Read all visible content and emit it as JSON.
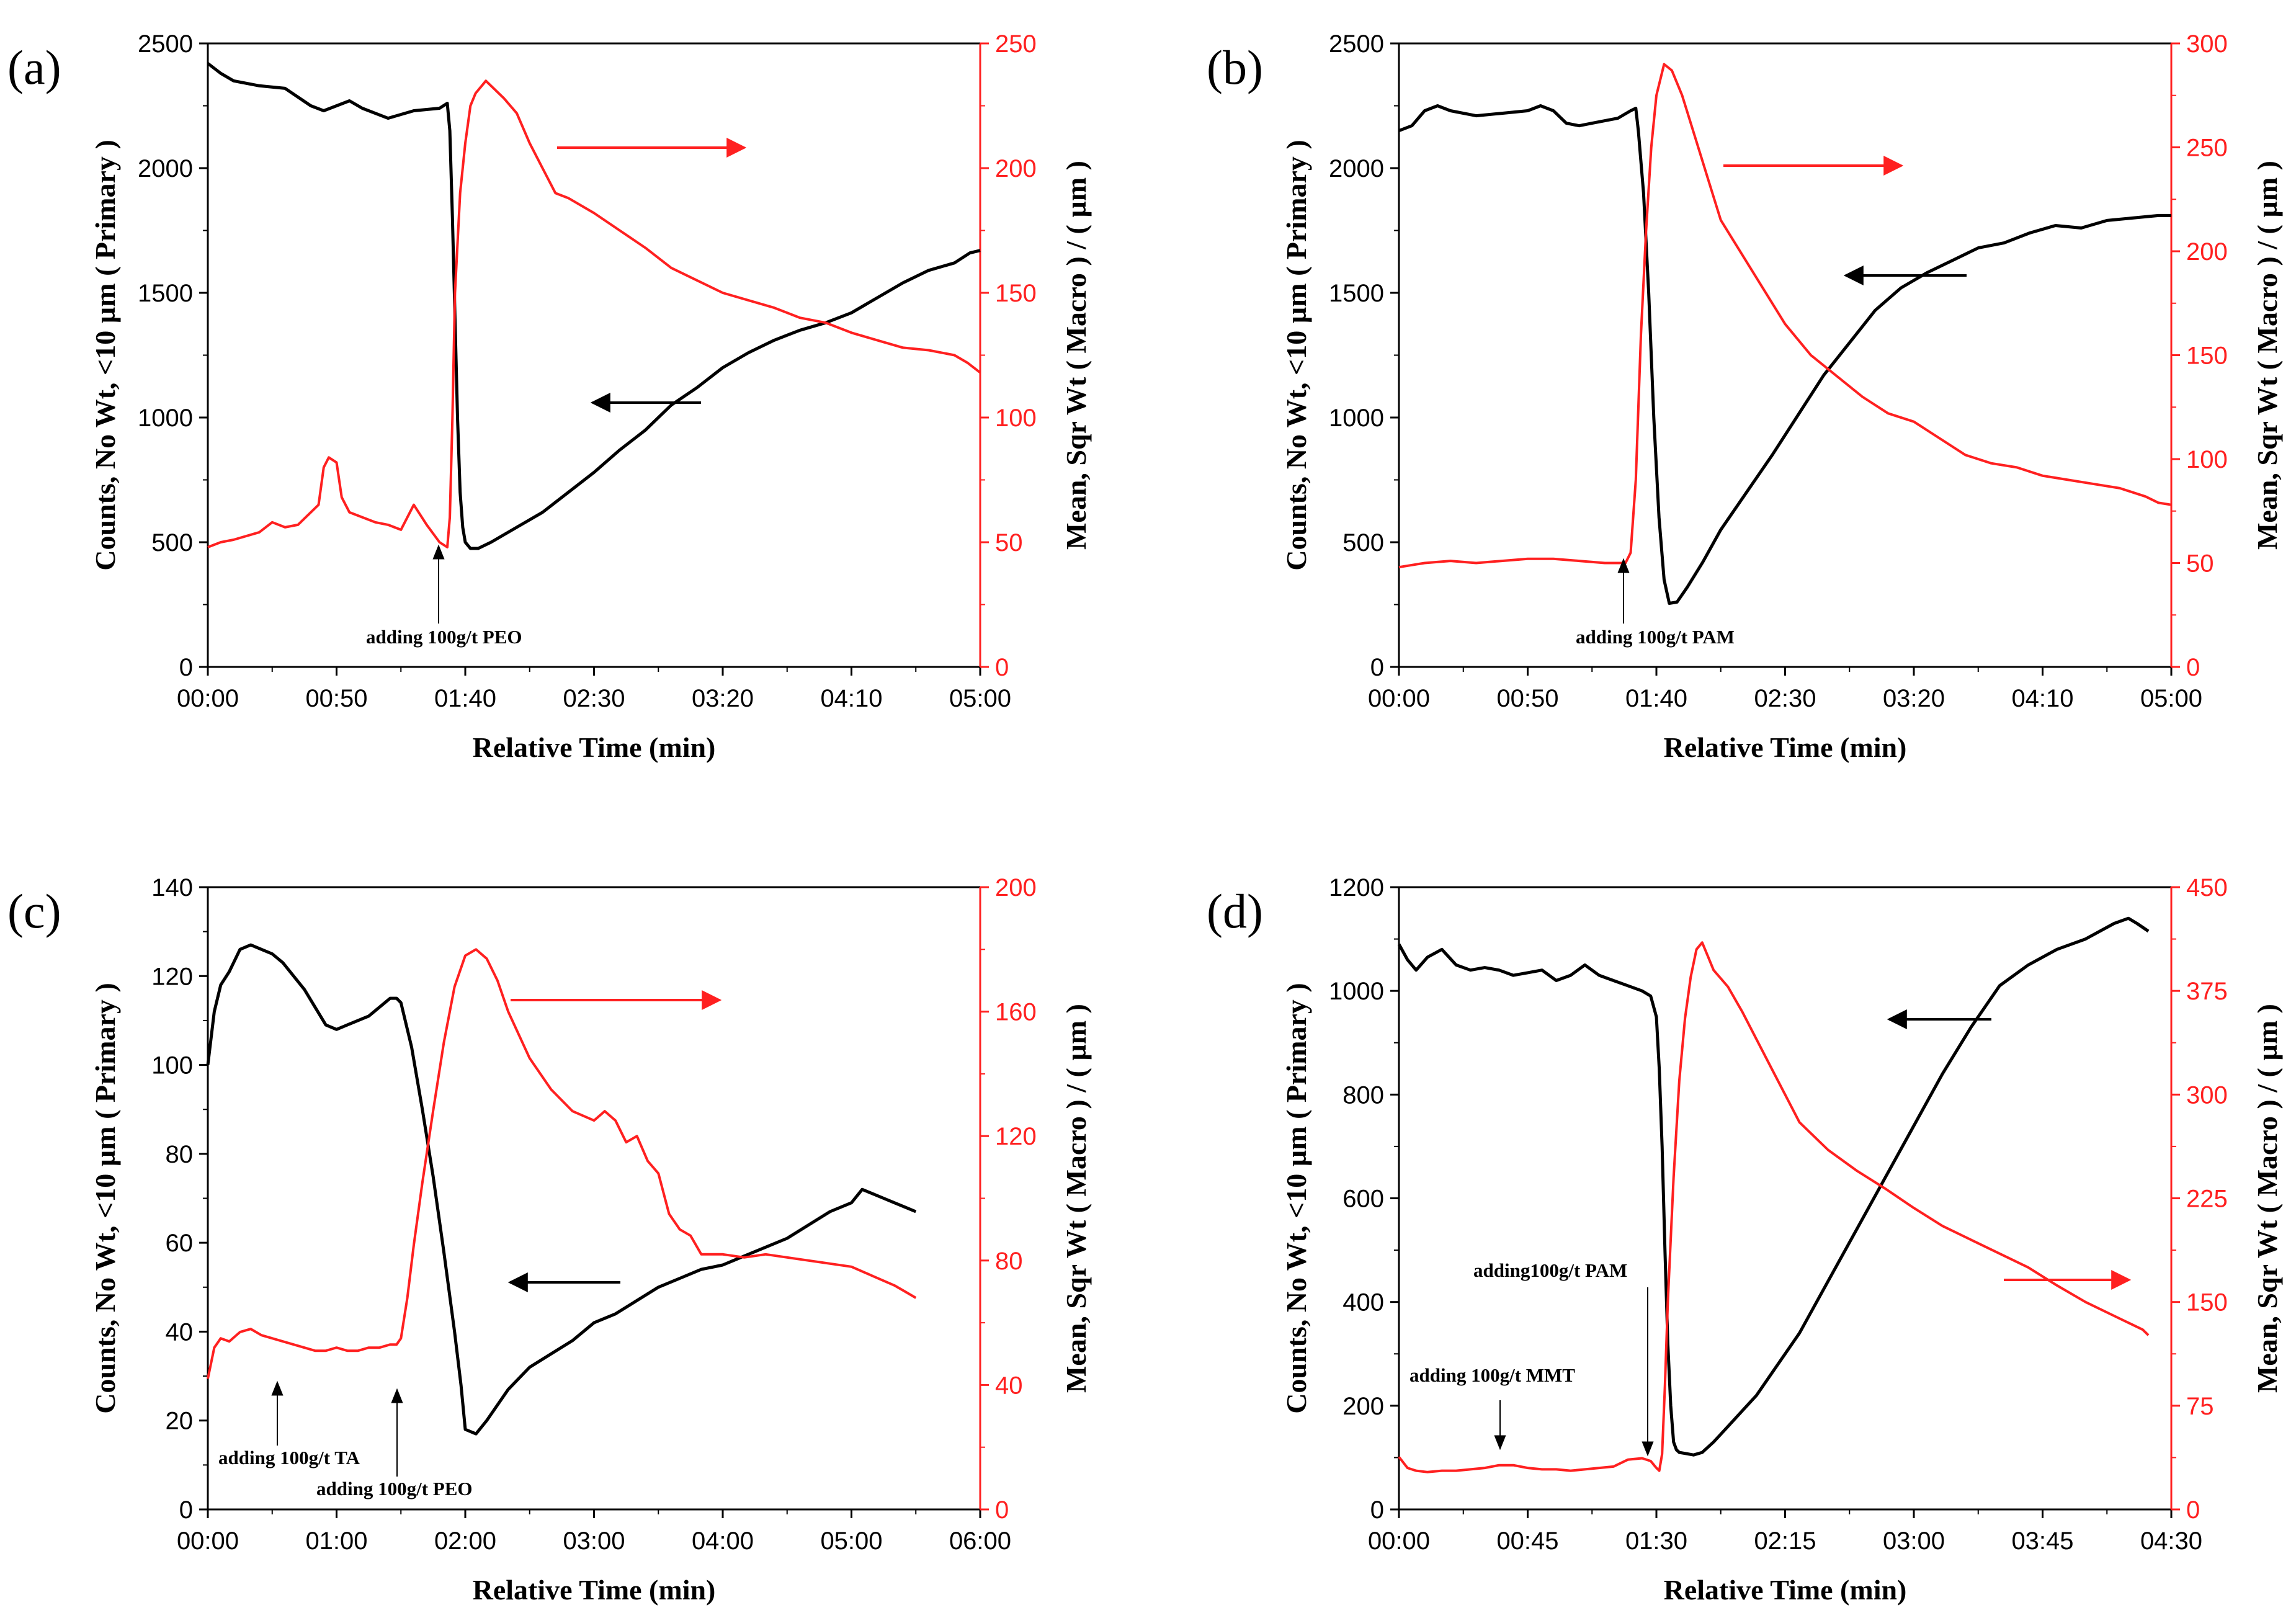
{
  "colors": {
    "left_series": "#000000",
    "right_series": "#ff2020",
    "axis": "#000000",
    "right_axis": "#ff2020"
  },
  "chart_data": [
    {
      "panel": "(a)",
      "type": "line",
      "xlabel": "Relative Time (min)",
      "ylabel_left": "Counts, No Wt, <10 µm ( Primary )",
      "ylabel_right": "Mean, Sqr Wt ( Macro ) / ( µm )",
      "xlim": [
        0,
        300
      ],
      "xticks": [
        0,
        50,
        100,
        150,
        200,
        250,
        300
      ],
      "xtick_labels": [
        "00:00",
        "00:50",
        "01:40",
        "02:30",
        "03:20",
        "04:10",
        "05:00"
      ],
      "ylim_left": [
        0,
        2500
      ],
      "yticks_left": [
        0,
        500,
        1000,
        1500,
        2000,
        2500
      ],
      "ylim_right": [
        0,
        250
      ],
      "yticks_right": [
        0,
        50,
        100,
        150,
        200,
        250
      ],
      "series": [
        {
          "name": "Counts, No Wt, <10 µm",
          "axis": "left",
          "color": "#000000",
          "x": [
            0,
            5,
            10,
            20,
            30,
            40,
            45,
            55,
            60,
            70,
            80,
            90,
            93,
            94,
            95,
            96,
            97,
            98,
            99,
            100,
            102,
            105,
            110,
            120,
            130,
            140,
            150,
            160,
            170,
            180,
            190,
            200,
            210,
            220,
            230,
            240,
            250,
            260,
            270,
            280,
            290,
            296,
            300
          ],
          "y": [
            2420,
            2380,
            2350,
            2330,
            2320,
            2250,
            2230,
            2270,
            2240,
            2200,
            2230,
            2240,
            2260,
            2150,
            1800,
            1400,
            1000,
            700,
            560,
            500,
            475,
            475,
            500,
            560,
            620,
            700,
            780,
            870,
            950,
            1050,
            1120,
            1200,
            1260,
            1310,
            1350,
            1380,
            1420,
            1480,
            1540,
            1590,
            1620,
            1660,
            1670
          ]
        },
        {
          "name": "Mean, Sqr Wt",
          "axis": "right",
          "color": "#ff2020",
          "x": [
            0,
            5,
            10,
            20,
            25,
            30,
            35,
            40,
            43,
            45,
            47,
            50,
            52,
            55,
            60,
            65,
            70,
            75,
            80,
            85,
            90,
            93,
            94,
            95,
            96,
            98,
            100,
            102,
            104,
            108,
            115,
            120,
            125,
            130,
            135,
            140,
            150,
            160,
            170,
            180,
            190,
            200,
            210,
            220,
            230,
            240,
            250,
            260,
            270,
            280,
            290,
            295,
            300
          ],
          "y": [
            48,
            50,
            51,
            54,
            58,
            56,
            57,
            62,
            65,
            80,
            84,
            82,
            68,
            62,
            60,
            58,
            57,
            55,
            65,
            57,
            50,
            48,
            60,
            100,
            150,
            190,
            210,
            225,
            230,
            235,
            228,
            222,
            210,
            200,
            190,
            188,
            182,
            175,
            168,
            160,
            155,
            150,
            147,
            144,
            140,
            138,
            134,
            131,
            128,
            127,
            125,
            122,
            118
          ]
        }
      ],
      "annotations": [
        {
          "text": "adding 100g/t PEO",
          "x": 90
        }
      ]
    },
    {
      "panel": "(b)",
      "type": "line",
      "xlabel": "Relative Time (min)",
      "ylabel_left": "Counts, No Wt, <10 µm ( Primary )",
      "ylabel_right": "Mean, Sqr Wt ( Macro ) / ( µm )",
      "xlim": [
        0,
        300
      ],
      "xticks": [
        0,
        50,
        100,
        150,
        200,
        250,
        300
      ],
      "xtick_labels": [
        "00:00",
        "00:50",
        "01:40",
        "02:30",
        "03:20",
        "04:10",
        "05:00"
      ],
      "ylim_left": [
        0,
        2500
      ],
      "yticks_left": [
        0,
        500,
        1000,
        1500,
        2000,
        2500
      ],
      "ylim_right": [
        0,
        300
      ],
      "yticks_right": [
        0,
        50,
        100,
        150,
        200,
        250,
        300
      ],
      "series": [
        {
          "name": "Counts, No Wt, <10 µm",
          "axis": "left",
          "color": "#000000",
          "x": [
            0,
            5,
            10,
            15,
            20,
            30,
            40,
            50,
            55,
            60,
            65,
            70,
            75,
            80,
            85,
            90,
            92,
            93,
            95,
            97,
            99,
            101,
            103,
            105,
            108,
            112,
            118,
            125,
            135,
            145,
            155,
            165,
            175,
            185,
            195,
            205,
            215,
            225,
            235,
            245,
            255,
            265,
            275,
            285,
            295,
            300
          ],
          "y": [
            2150,
            2170,
            2230,
            2250,
            2230,
            2210,
            2220,
            2230,
            2250,
            2230,
            2180,
            2170,
            2180,
            2190,
            2200,
            2230,
            2240,
            2150,
            1900,
            1500,
            1000,
            600,
            350,
            255,
            260,
            320,
            420,
            550,
            700,
            850,
            1010,
            1170,
            1300,
            1430,
            1520,
            1580,
            1630,
            1680,
            1700,
            1740,
            1770,
            1760,
            1790,
            1800,
            1810,
            1810
          ]
        },
        {
          "name": "Mean, Sqr Wt",
          "axis": "right",
          "color": "#ff2020",
          "x": [
            0,
            10,
            20,
            30,
            40,
            50,
            60,
            70,
            80,
            85,
            88,
            90,
            92,
            94,
            96,
            98,
            100,
            103,
            106,
            110,
            115,
            120,
            125,
            130,
            140,
            150,
            160,
            170,
            180,
            190,
            200,
            210,
            220,
            230,
            240,
            250,
            260,
            270,
            280,
            290,
            295,
            300
          ],
          "y": [
            48,
            50,
            51,
            50,
            51,
            52,
            52,
            51,
            50,
            50,
            50,
            55,
            90,
            160,
            210,
            250,
            275,
            290,
            287,
            275,
            255,
            235,
            215,
            205,
            185,
            165,
            150,
            140,
            130,
            122,
            118,
            110,
            102,
            98,
            96,
            92,
            90,
            88,
            86,
            82,
            79,
            78
          ]
        }
      ],
      "annotations": [
        {
          "text": "adding 100g/t PAM",
          "x": 85
        }
      ]
    },
    {
      "panel": "(c)",
      "type": "line",
      "xlabel": "Relative Time (min)",
      "ylabel_left": "Counts, No Wt, <10 µm ( Primary )",
      "ylabel_right": "Mean, Sqr Wt ( Macro ) / ( µm )",
      "xlim": [
        0,
        360
      ],
      "xticks": [
        0,
        60,
        120,
        180,
        240,
        300,
        360
      ],
      "xtick_labels": [
        "00:00",
        "01:00",
        "02:00",
        "03:00",
        "04:00",
        "05:00",
        "06:00"
      ],
      "ylim_left": [
        0,
        140
      ],
      "yticks_left": [
        0,
        20,
        40,
        60,
        80,
        100,
        120,
        140
      ],
      "ylim_right": [
        0,
        200
      ],
      "yticks_right": [
        0,
        40,
        80,
        120,
        160,
        200
      ],
      "series": [
        {
          "name": "Counts, No Wt, <10 µm",
          "axis": "left",
          "color": "#000000",
          "x": [
            0,
            3,
            6,
            10,
            15,
            20,
            25,
            30,
            35,
            40,
            45,
            50,
            55,
            60,
            65,
            70,
            75,
            80,
            85,
            88,
            90,
            95,
            100,
            105,
            110,
            115,
            118,
            120,
            125,
            130,
            140,
            150,
            160,
            170,
            180,
            190,
            200,
            210,
            220,
            230,
            240,
            250,
            260,
            270,
            280,
            290,
            300,
            305,
            310,
            315,
            320,
            325,
            330
          ],
          "y": [
            100,
            112,
            118,
            121,
            126,
            127,
            126,
            125,
            123,
            120,
            117,
            113,
            109,
            108,
            109,
            110,
            111,
            113,
            115,
            115,
            114,
            104,
            90,
            75,
            58,
            40,
            28,
            18,
            17,
            20,
            27,
            32,
            35,
            38,
            42,
            44,
            47,
            50,
            52,
            54,
            55,
            57,
            59,
            61,
            64,
            67,
            69,
            72,
            71,
            70,
            69,
            68,
            67
          ]
        },
        {
          "name": "Mean, Sqr Wt",
          "axis": "right",
          "color": "#ff2020",
          "x": [
            0,
            3,
            6,
            10,
            15,
            20,
            25,
            30,
            35,
            40,
            45,
            50,
            55,
            60,
            65,
            70,
            75,
            80,
            85,
            88,
            90,
            93,
            96,
            100,
            105,
            110,
            115,
            120,
            125,
            130,
            135,
            140,
            150,
            160,
            170,
            180,
            185,
            190,
            195,
            200,
            205,
            210,
            215,
            220,
            225,
            230,
            240,
            250,
            260,
            270,
            280,
            290,
            300,
            310,
            320,
            325,
            330
          ],
          "y": [
            42,
            52,
            55,
            54,
            57,
            58,
            56,
            55,
            54,
            53,
            52,
            51,
            51,
            52,
            51,
            51,
            52,
            52,
            53,
            53,
            55,
            68,
            85,
            105,
            128,
            150,
            168,
            178,
            180,
            177,
            170,
            160,
            145,
            135,
            128,
            125,
            128,
            125,
            118,
            120,
            112,
            108,
            95,
            90,
            88,
            82,
            82,
            81,
            82,
            81,
            80,
            79,
            78,
            75,
            72,
            70,
            68
          ]
        }
      ],
      "annotations": [
        {
          "text": "adding 100g/t TA",
          "x": 30
        },
        {
          "text": "adding  100g/t PEO",
          "x": 88
        }
      ]
    },
    {
      "panel": "(d)",
      "type": "line",
      "xlabel": "Relative Time (min)",
      "ylabel_left": "Counts, No Wt, <10 µm ( Primary )",
      "ylabel_right": "Mean, Sqr Wt ( Macro ) / ( µm )",
      "xlim": [
        0,
        270
      ],
      "xticks": [
        0,
        45,
        90,
        135,
        180,
        225,
        270
      ],
      "xtick_labels": [
        "00:00",
        "00:45",
        "01:30",
        "02:15",
        "03:00",
        "03:45",
        "04:30"
      ],
      "ylim_left": [
        0,
        1200
      ],
      "yticks_left": [
        0,
        200,
        400,
        600,
        800,
        1000,
        1200
      ],
      "ylim_right": [
        0,
        450
      ],
      "yticks_right": [
        0,
        75,
        150,
        225,
        300,
        375,
        450
      ],
      "series": [
        {
          "name": "Counts, No Wt, <10 µm",
          "axis": "left",
          "color": "#000000",
          "x": [
            0,
            3,
            6,
            10,
            15,
            20,
            25,
            30,
            35,
            40,
            45,
            50,
            55,
            60,
            65,
            70,
            75,
            80,
            85,
            88,
            90,
            91,
            92,
            93,
            94,
            95,
            96,
            97,
            98,
            100,
            103,
            106,
            110,
            115,
            120,
            125,
            130,
            140,
            150,
            160,
            170,
            180,
            190,
            200,
            210,
            220,
            230,
            240,
            250,
            255,
            258,
            262
          ],
          "y": [
            1090,
            1060,
            1040,
            1065,
            1080,
            1050,
            1040,
            1045,
            1040,
            1030,
            1035,
            1040,
            1020,
            1030,
            1050,
            1030,
            1020,
            1010,
            1000,
            990,
            950,
            850,
            700,
            500,
            320,
            200,
            130,
            115,
            110,
            108,
            105,
            110,
            130,
            160,
            190,
            220,
            260,
            340,
            440,
            540,
            640,
            740,
            840,
            930,
            1010,
            1050,
            1080,
            1100,
            1130,
            1140,
            1130,
            1115
          ]
        },
        {
          "name": "Mean, Sqr Wt",
          "axis": "right",
          "color": "#ff2020",
          "x": [
            0,
            3,
            6,
            10,
            15,
            20,
            25,
            30,
            35,
            40,
            45,
            50,
            55,
            60,
            65,
            70,
            75,
            80,
            85,
            88,
            90,
            91,
            92,
            93,
            94,
            96,
            98,
            100,
            102,
            104,
            106,
            108,
            110,
            115,
            120,
            130,
            140,
            150,
            160,
            170,
            180,
            190,
            200,
            210,
            220,
            230,
            240,
            250,
            255,
            260,
            262
          ],
          "y": [
            38,
            30,
            28,
            27,
            28,
            28,
            29,
            30,
            32,
            32,
            30,
            29,
            29,
            28,
            29,
            30,
            31,
            36,
            37,
            35,
            30,
            28,
            40,
            90,
            150,
            240,
            310,
            355,
            385,
            405,
            410,
            400,
            390,
            378,
            360,
            320,
            280,
            260,
            245,
            232,
            218,
            205,
            195,
            185,
            175,
            162,
            150,
            140,
            135,
            130,
            126
          ]
        }
      ],
      "annotations": [
        {
          "text": "adding 100g/t MMT",
          "x": 35
        },
        {
          "text": "adding100g/t PAM",
          "x": 84
        }
      ]
    }
  ]
}
